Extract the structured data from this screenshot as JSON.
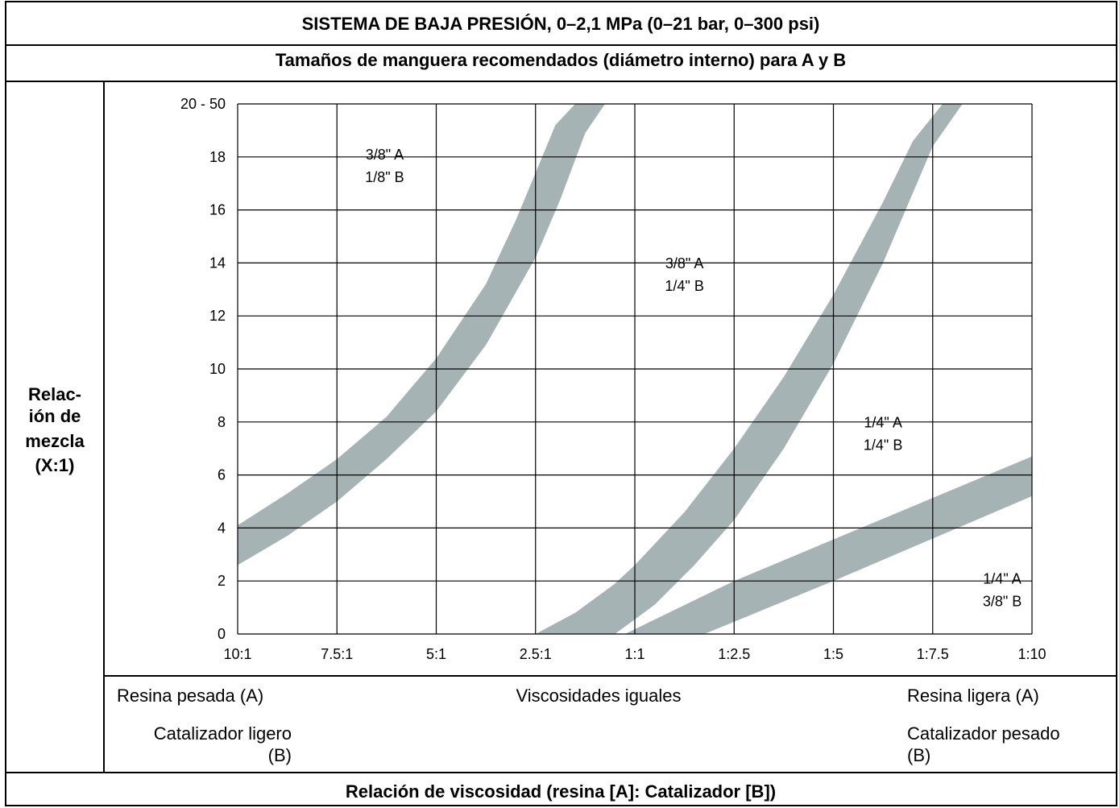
{
  "header": {
    "title": "SISTEMA DE BAJA PRESIÓN, 0–2,1 MPa (0–21 bar, 0–300 psi)",
    "subtitle": "Tamaños de manguera recomendados (diámetro interno) para A y B"
  },
  "y_axis": {
    "label_lines": [
      "Relac-",
      "ión de",
      "mezcla",
      "(X:1)"
    ]
  },
  "x_axis": {
    "title": "Relación de viscosidad (resina [A]: Catalizador [B])",
    "notes": {
      "left": [
        "Resina pesada (A)",
        "Catalizador ligero",
        "(B)"
      ],
      "center": "Viscosidades iguales",
      "right": [
        "Resina ligera (A)",
        "Catalizador pesado",
        "(B)"
      ]
    }
  },
  "chart_data": {
    "type": "area",
    "x_ticks": [
      "10:1",
      "7.5:1",
      "5:1",
      "2.5:1",
      "1:1",
      "1:2.5",
      "1:5",
      "1:7.5",
      "1:10"
    ],
    "y_ticks": [
      {
        "value": 0,
        "label": "0"
      },
      {
        "value": 2,
        "label": "2"
      },
      {
        "value": 4,
        "label": "4"
      },
      {
        "value": 6,
        "label": "6"
      },
      {
        "value": 8,
        "label": "8"
      },
      {
        "value": 10,
        "label": "10"
      },
      {
        "value": 12,
        "label": "12"
      },
      {
        "value": 14,
        "label": "14"
      },
      {
        "value": 16,
        "label": "16"
      },
      {
        "value": 18,
        "label": "18"
      },
      {
        "value": 20,
        "label": "20 - 50"
      }
    ],
    "xlim": [
      0,
      8
    ],
    "ylim": [
      0,
      20
    ],
    "grid": true,
    "band_color": "#a6b3b4",
    "bands": [
      {
        "lower": [
          [
            0,
            2.6
          ],
          [
            0.5,
            3.7
          ],
          [
            1,
            5.0
          ],
          [
            1.5,
            6.6
          ],
          [
            2,
            8.4
          ],
          [
            2.5,
            10.9
          ],
          [
            3,
            14.2
          ],
          [
            3.25,
            16.4
          ],
          [
            3.5,
            18.9
          ],
          [
            3.7,
            20
          ]
        ],
        "upper": [
          [
            0,
            4.1
          ],
          [
            0.5,
            5.3
          ],
          [
            1,
            6.6
          ],
          [
            1.5,
            8.2
          ],
          [
            2,
            10.4
          ],
          [
            2.5,
            13.2
          ],
          [
            2.8,
            15.6
          ],
          [
            3,
            17.4
          ],
          [
            3.2,
            19.2
          ],
          [
            3.4,
            20
          ]
        ]
      },
      {
        "lower": [
          [
            3.8,
            0
          ],
          [
            4.2,
            1.1
          ],
          [
            4.6,
            2.6
          ],
          [
            5,
            4.3
          ],
          [
            5.5,
            7.0
          ],
          [
            6,
            10.2
          ],
          [
            6.5,
            14.0
          ],
          [
            7,
            18.4
          ],
          [
            7.3,
            20
          ]
        ],
        "upper": [
          [
            3,
            0
          ],
          [
            3.4,
            0.8
          ],
          [
            3.8,
            1.9
          ],
          [
            4,
            2.6
          ],
          [
            4.5,
            4.6
          ],
          [
            5,
            7.0
          ],
          [
            5.5,
            9.7
          ],
          [
            6,
            12.8
          ],
          [
            6.5,
            16.3
          ],
          [
            6.8,
            18.6
          ],
          [
            7.1,
            20
          ]
        ]
      },
      {
        "lower": [
          [
            4.7,
            0
          ],
          [
            6,
            2.0
          ],
          [
            8,
            5.2
          ]
        ],
        "upper": [
          [
            3.9,
            0
          ],
          [
            5,
            2.0
          ],
          [
            8,
            6.7
          ]
        ]
      }
    ],
    "regions": [
      {
        "lines": [
          "3/8\" A",
          "1/8\" B"
        ],
        "x": 1.48,
        "y": 17.9
      },
      {
        "lines": [
          "3/8\" A",
          "1/4\" B"
        ],
        "x": 4.5,
        "y": 13.8
      },
      {
        "lines": [
          "1/4\" A",
          "1/4\" B"
        ],
        "x": 6.5,
        "y": 7.8
      },
      {
        "lines": [
          "1/4\" A",
          "3/8\" B"
        ],
        "x": 7.7,
        "y": 1.9
      }
    ]
  }
}
